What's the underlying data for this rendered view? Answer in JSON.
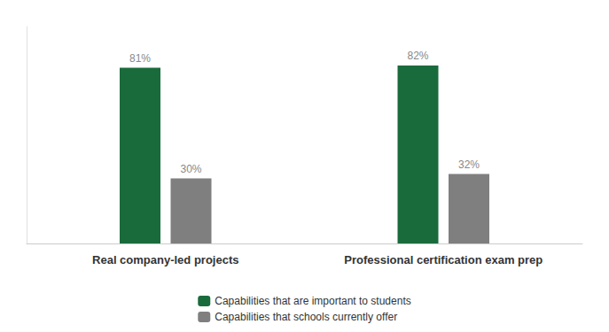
{
  "chart_data": {
    "type": "bar",
    "categories": [
      "Real company-led projects",
      "Professional certification exam prep"
    ],
    "series": [
      {
        "name": "Capabilities that are important to students",
        "color": "#1a6b3c",
        "values": [
          81,
          82
        ],
        "value_labels": [
          "81%",
          "82%"
        ]
      },
      {
        "name": "Capabilities that schools currently offer",
        "color": "#7f7f7f",
        "values": [
          30,
          32
        ],
        "value_labels": [
          "30%",
          "32%"
        ]
      }
    ],
    "ylim": [
      0,
      100
    ],
    "grid": false,
    "legend": "bottom",
    "data_labels": true,
    "tick_labels": "x"
  }
}
